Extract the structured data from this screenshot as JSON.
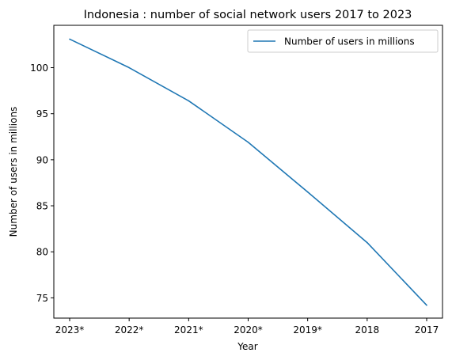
{
  "chart_data": {
    "type": "line",
    "title": "Indonesia : number of social network users 2017 to 2023",
    "xlabel": "Year",
    "ylabel": "Number of users in millions",
    "categories": [
      "2023*",
      "2022*",
      "2021*",
      "2020*",
      "2019*",
      "2018",
      "2017"
    ],
    "series": [
      {
        "name": "Number of users in millions",
        "values": [
          103.1,
          100.0,
          96.4,
          91.9,
          86.5,
          81.0,
          74.2
        ],
        "color": "#1f77b4"
      }
    ],
    "ylim": [
      72.8,
      104.6
    ],
    "yticks": [
      75,
      80,
      85,
      90,
      95,
      100
    ],
    "grid": false,
    "legend": "top-right"
  }
}
